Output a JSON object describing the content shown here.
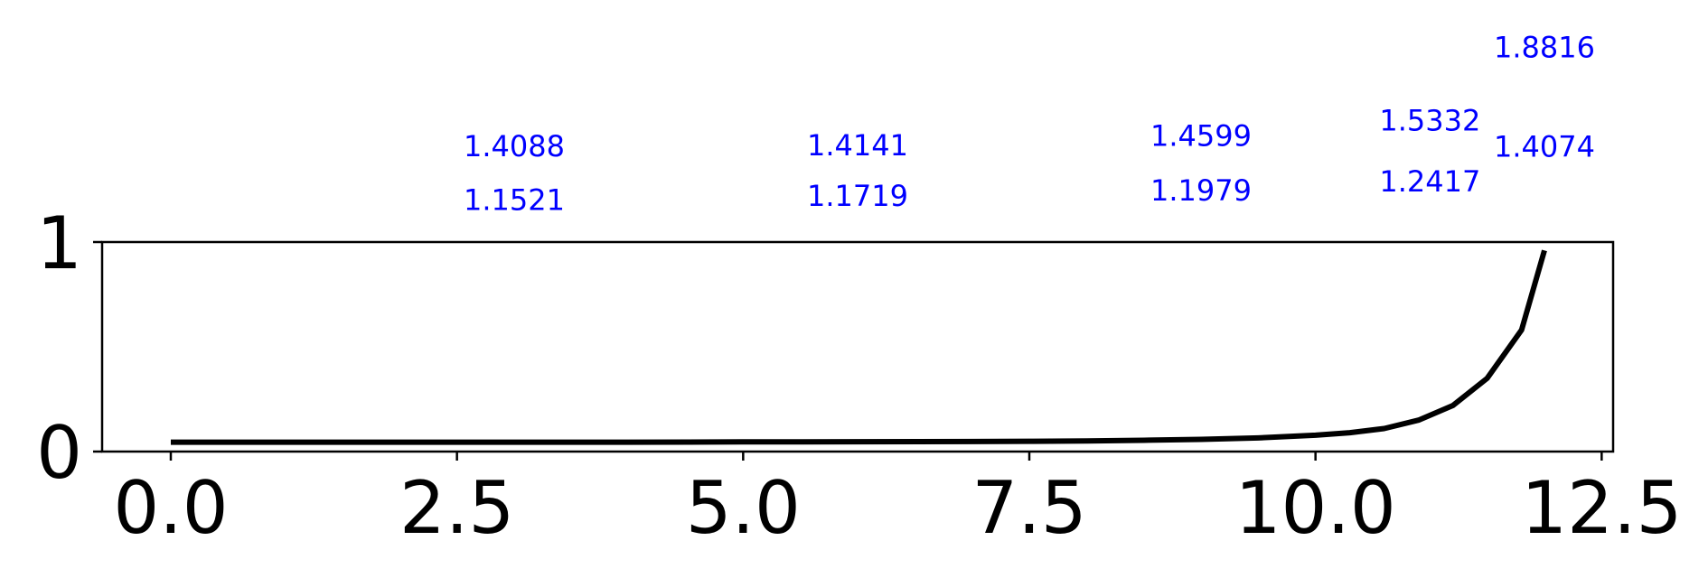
{
  "chart_data": {
    "type": "line",
    "title": "",
    "xlabel": "",
    "ylabel": "",
    "xlim": [
      -0.6,
      12.6
    ],
    "ylim": [
      0,
      1
    ],
    "x_ticks": [
      0.0,
      2.5,
      5.0,
      7.5,
      10.0,
      12.5
    ],
    "x_tick_labels": [
      "0.0",
      "2.5",
      "5.0",
      "7.5",
      "10.0",
      "12.5"
    ],
    "y_ticks": [
      0,
      1
    ],
    "y_tick_labels": [
      "0",
      "1"
    ],
    "grid": false,
    "legend": "none",
    "series": [
      {
        "color": "#000000",
        "x": [
          0,
          1,
          2,
          3,
          4,
          5,
          6,
          7,
          7.5,
          8,
          8.5,
          9,
          9.5,
          10,
          10.3,
          10.6,
          10.9,
          11.2,
          11.5,
          11.8,
          12
        ],
        "y": [
          0.045,
          0.045,
          0.045,
          0.045,
          0.045,
          0.046,
          0.047,
          0.048,
          0.049,
          0.051,
          0.054,
          0.058,
          0.065,
          0.078,
          0.09,
          0.11,
          0.15,
          0.22,
          0.35,
          0.58,
          0.96
        ]
      }
    ],
    "annotations": {
      "color": "#0000ff",
      "items": [
        {
          "x": 3.0,
          "y": 1.4088,
          "text": "1.4088"
        },
        {
          "x": 3.0,
          "y": 1.1521,
          "text": "1.1521"
        },
        {
          "x": 6.0,
          "y": 1.4141,
          "text": "1.4141"
        },
        {
          "x": 6.0,
          "y": 1.1719,
          "text": "1.1719"
        },
        {
          "x": 9.0,
          "y": 1.4599,
          "text": "1.4599"
        },
        {
          "x": 9.0,
          "y": 1.1979,
          "text": "1.1979"
        },
        {
          "x": 11.0,
          "y": 1.5332,
          "text": "1.5332"
        },
        {
          "x": 11.0,
          "y": 1.2417,
          "text": "1.2417"
        },
        {
          "x": 12.0,
          "y": 1.8816,
          "text": "1.8816"
        },
        {
          "x": 12.0,
          "y": 1.4074,
          "text": "1.4074"
        }
      ]
    }
  }
}
